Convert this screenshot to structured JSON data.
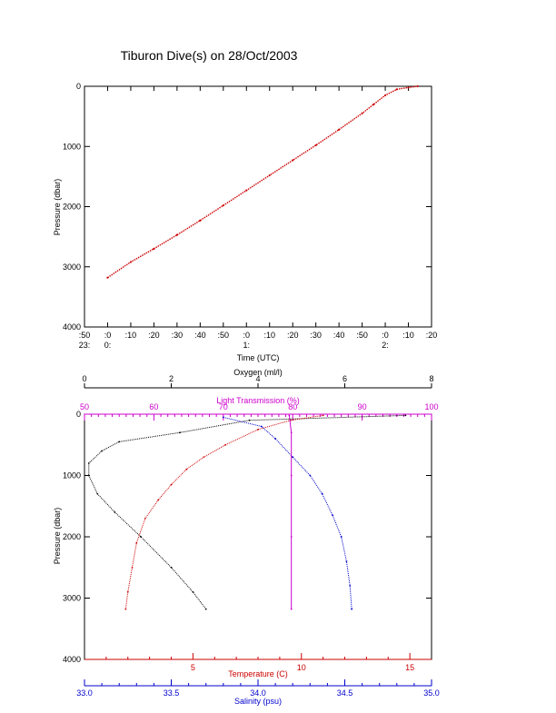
{
  "title": "Tiburon Dive(s) on 28/Oct/2003",
  "chart_data": [
    {
      "type": "line",
      "name": "pressure-time",
      "ylabel": "Pressure (dbar)",
      "xlabel": "Time (UTC)",
      "ylim": [
        4000,
        0
      ],
      "yticks": [
        "0",
        "1000",
        "2000",
        "3000",
        "4000"
      ],
      "xticks_top": [
        ":50",
        ":0",
        ":10",
        ":20",
        ":30",
        ":40",
        ":50",
        ":0",
        ":10",
        ":20",
        ":30",
        ":40",
        ":50",
        ":0",
        ":10",
        ":20"
      ],
      "xticks_hours": [
        "23:",
        "0:",
        "1:",
        "2:"
      ],
      "x_minutes": [
        -10,
        0,
        60,
        120,
        150
      ],
      "xlim_minutes": [
        -10,
        140
      ],
      "series": [
        {
          "color": "#cc0000",
          "x": [
            0,
            10,
            20,
            30,
            40,
            50,
            60,
            70,
            80,
            90,
            100,
            110,
            115,
            120,
            125,
            130,
            134
          ],
          "values": [
            3180,
            2920,
            2700,
            2470,
            2230,
            1980,
            1730,
            1480,
            1230,
            980,
            720,
            450,
            300,
            150,
            50,
            20,
            0
          ]
        }
      ]
    },
    {
      "type": "scatter",
      "name": "profiles",
      "ylabel": "Pressure (dbar)",
      "ylim": [
        4000,
        0
      ],
      "yticks": [
        "0",
        "1000",
        "2000",
        "3000",
        "4000"
      ],
      "axes": {
        "oxygen": {
          "label": "Oxygen (ml/l)",
          "range": [
            0,
            8
          ],
          "ticks": [
            "0",
            "2",
            "4",
            "6",
            "8"
          ],
          "color": "#000000"
        },
        "transmission": {
          "label": "Light Transmission (%)",
          "range": [
            50,
            100
          ],
          "ticks": [
            "50",
            "60",
            "70",
            "80",
            "90",
            "100"
          ],
          "color": "#cc00cc"
        },
        "temperature": {
          "label": "Temperature (C)",
          "range": [
            0,
            16
          ],
          "ticks": [
            "5",
            "10",
            "15"
          ],
          "color": "#cc0000"
        },
        "salinity": {
          "label": "Salinity (psu)",
          "range": [
            33.0,
            35.0
          ],
          "ticks": [
            "33.0",
            "33.5",
            "34.0",
            "34.5",
            "35.0"
          ],
          "color": "#0000cc"
        }
      },
      "series": [
        {
          "axis": "oxygen",
          "color": "#000000",
          "x": [
            7.4,
            3.8,
            2.2,
            0.8,
            0.4,
            0.1,
            0.1,
            0.3,
            0.7,
            1.3,
            2.0,
            2.5,
            2.8
          ],
          "values": [
            20,
            100,
            300,
            450,
            600,
            800,
            1000,
            1300,
            1600,
            2000,
            2500,
            2900,
            3180
          ]
        },
        {
          "axis": "temperature",
          "color": "#cc0000",
          "x": [
            11.0,
            9.5,
            8.0,
            6.5,
            5.5,
            4.7,
            4.0,
            3.4,
            2.8,
            2.4,
            2.2,
            2.0,
            1.9
          ],
          "values": [
            20,
            100,
            250,
            500,
            700,
            900,
            1150,
            1400,
            1700,
            2100,
            2500,
            2900,
            3180
          ]
        },
        {
          "axis": "salinity",
          "color": "#0000cc",
          "x": [
            33.8,
            34.02,
            34.1,
            34.2,
            34.3,
            34.37,
            34.43,
            34.48,
            34.51,
            34.53,
            34.54
          ],
          "values": [
            50,
            200,
            400,
            700,
            1000,
            1300,
            1650,
            2000,
            2400,
            2800,
            3180
          ]
        },
        {
          "axis": "transmission",
          "color": "#cc00cc",
          "x": [
            79.5,
            79.8,
            79.8,
            79.8,
            79.8
          ],
          "values": [
            20,
            300,
            1000,
            2000,
            3180
          ]
        }
      ]
    }
  ]
}
